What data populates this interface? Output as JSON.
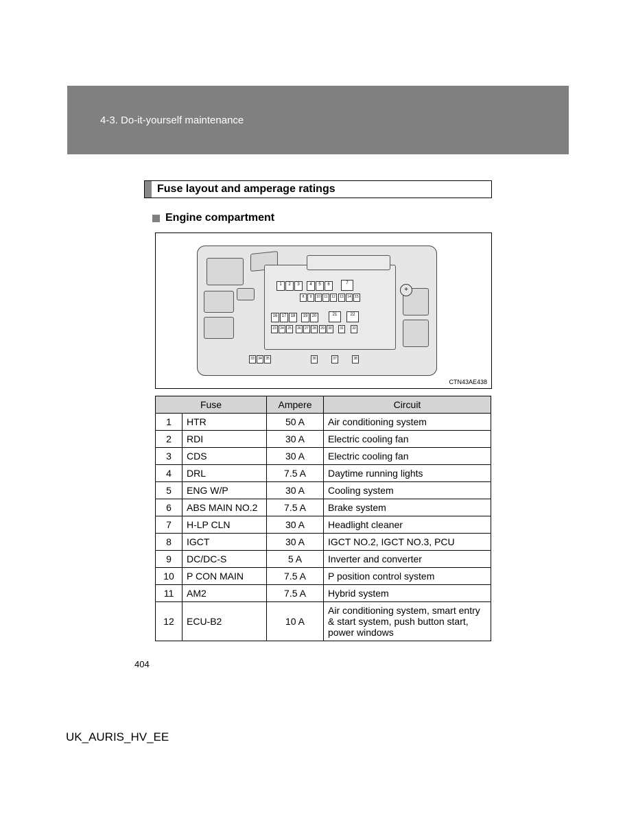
{
  "header": {
    "section_label": "4-3. Do-it-yourself maintenance"
  },
  "section_title": "Fuse layout and amperage ratings",
  "sub_heading": "Engine compartment",
  "diagram": {
    "code": "CTN43AE438",
    "fuse_row1": [
      "1",
      "2",
      "3"
    ],
    "fuse_row1b": [
      "4",
      "5",
      "6"
    ],
    "fuse_row1c": [
      "7"
    ],
    "fuse_row2": [
      "8",
      "9",
      "10",
      "11",
      "12"
    ],
    "fuse_row2b": [
      "13",
      "14",
      "15"
    ],
    "fuse_row3": [
      "16",
      "17",
      "18"
    ],
    "fuse_row3b": [
      "19",
      "20"
    ],
    "fuse_row3c": [
      "21"
    ],
    "fuse_row3d": [
      "22"
    ],
    "fuse_row4": [
      "23",
      "24",
      "25"
    ],
    "fuse_row4b": [
      "26",
      "27",
      "28"
    ],
    "fuse_row4c": [
      "29",
      "30"
    ],
    "fuse_row4d": [
      "31"
    ],
    "fuse_row4e": [
      "32"
    ],
    "fuse_row5": [
      "33",
      "34",
      "35"
    ],
    "fuse_row5b": [
      "36"
    ],
    "fuse_row5c": [
      "37"
    ],
    "fuse_row5d": [
      "38"
    ]
  },
  "table": {
    "headers": {
      "fuse": "Fuse",
      "ampere": "Ampere",
      "circuit": "Circuit"
    },
    "rows": [
      {
        "num": "1",
        "name": "HTR",
        "amp": "50 A",
        "circuit": "Air conditioning system"
      },
      {
        "num": "2",
        "name": "RDI",
        "amp": "30 A",
        "circuit": "Electric cooling fan"
      },
      {
        "num": "3",
        "name": "CDS",
        "amp": "30 A",
        "circuit": "Electric cooling fan"
      },
      {
        "num": "4",
        "name": "DRL",
        "amp": "7.5 A",
        "circuit": "Daytime running lights"
      },
      {
        "num": "5",
        "name": "ENG W/P",
        "amp": "30 A",
        "circuit": "Cooling system"
      },
      {
        "num": "6",
        "name": "ABS MAIN NO.2",
        "amp": "7.5 A",
        "circuit": "Brake system"
      },
      {
        "num": "7",
        "name": "H-LP CLN",
        "amp": "30 A",
        "circuit": "Headlight cleaner"
      },
      {
        "num": "8",
        "name": "IGCT",
        "amp": "30 A",
        "circuit": "IGCT NO.2, IGCT NO.3, PCU"
      },
      {
        "num": "9",
        "name": "DC/DC-S",
        "amp": "5 A",
        "circuit": "Inverter and converter"
      },
      {
        "num": "10",
        "name": "P CON MAIN",
        "amp": "7.5 A",
        "circuit": "P position control system"
      },
      {
        "num": "11",
        "name": "AM2",
        "amp": "7.5 A",
        "circuit": "Hybrid system"
      },
      {
        "num": "12",
        "name": "ECU-B2",
        "amp": "10 A",
        "circuit": "Air conditioning system, smart entry & start system, push button start, power windows"
      }
    ]
  },
  "page_number": "404",
  "footer_code": "UK_AURIS_HV_EE"
}
